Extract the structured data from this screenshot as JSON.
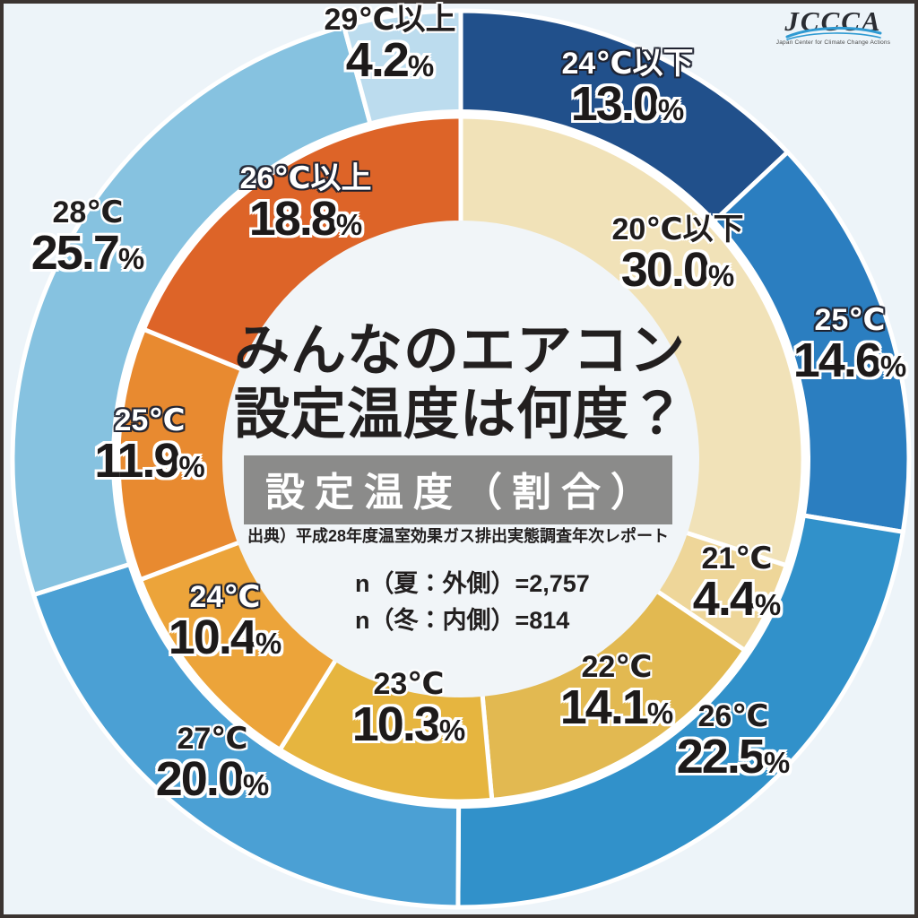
{
  "palette": {
    "background": "#edf4f9",
    "banner_bg": "#8b8b8a",
    "frame_border": "#3b3431",
    "text_dark": "#221f1f",
    "center_fill": "#f1f5f8",
    "logo_blue": "#2f9ad2"
  },
  "logo": {
    "text": "JCCCA",
    "caption": "Japan Center for Climate Change Actions"
  },
  "center": {
    "title_line1": "みんなのエアコン",
    "title_line2": "設定温度は何度？",
    "banner": "設定温度（割合）",
    "source": "出典）平成28年度温室効果ガス排出実態調査年次レポート",
    "n_summer": "n（夏：外側）=2,757",
    "n_winter": "n（冬：内側）=814"
  },
  "chart_data": {
    "type": "pie",
    "variant": "double-donut",
    "title": "みんなのエアコン設定温度は何度？",
    "subtitle": "設定温度（割合）",
    "units": "%",
    "start_angle_deg": 0,
    "direction": "clockwise",
    "rings": [
      {
        "name": "夏（外側）",
        "n": 2757,
        "position": "outer",
        "segments": [
          {
            "label": "24℃以下",
            "value": 13.0,
            "color": "#21508b",
            "label_style": "light"
          },
          {
            "label": "25℃",
            "value": 14.6,
            "color": "#2b7ec0",
            "label_style": "light"
          },
          {
            "label": "26℃",
            "value": 22.5,
            "color": "#3191ca",
            "label_style": "dark"
          },
          {
            "label": "27℃",
            "value": 20.0,
            "color": "#4ba0d4",
            "label_style": "dark"
          },
          {
            "label": "28℃",
            "value": 25.7,
            "color": "#86c2e0",
            "label_style": "dark"
          },
          {
            "label": "29℃以上",
            "value": 4.2,
            "color": "#bcdcee",
            "label_style": "dark"
          }
        ]
      },
      {
        "name": "冬（内側）",
        "n": 814,
        "position": "inner",
        "segments": [
          {
            "label": "20℃以下",
            "value": 30.0,
            "color": "#f1e2b8",
            "label_style": "dark"
          },
          {
            "label": "21℃",
            "value": 4.4,
            "color": "#eed699",
            "label_style": "dark"
          },
          {
            "label": "22℃",
            "value": 14.1,
            "color": "#e2b951",
            "label_style": "dark"
          },
          {
            "label": "23℃",
            "value": 10.3,
            "color": "#e6b53f",
            "label_style": "dark"
          },
          {
            "label": "24℃",
            "value": 10.4,
            "color": "#eca43a",
            "label_style": "light"
          },
          {
            "label": "25℃",
            "value": 11.9,
            "color": "#e88a30",
            "label_style": "light"
          },
          {
            "label": "26℃以上",
            "value": 18.8,
            "color": "#dd6428",
            "label_style": "light"
          }
        ]
      }
    ]
  }
}
